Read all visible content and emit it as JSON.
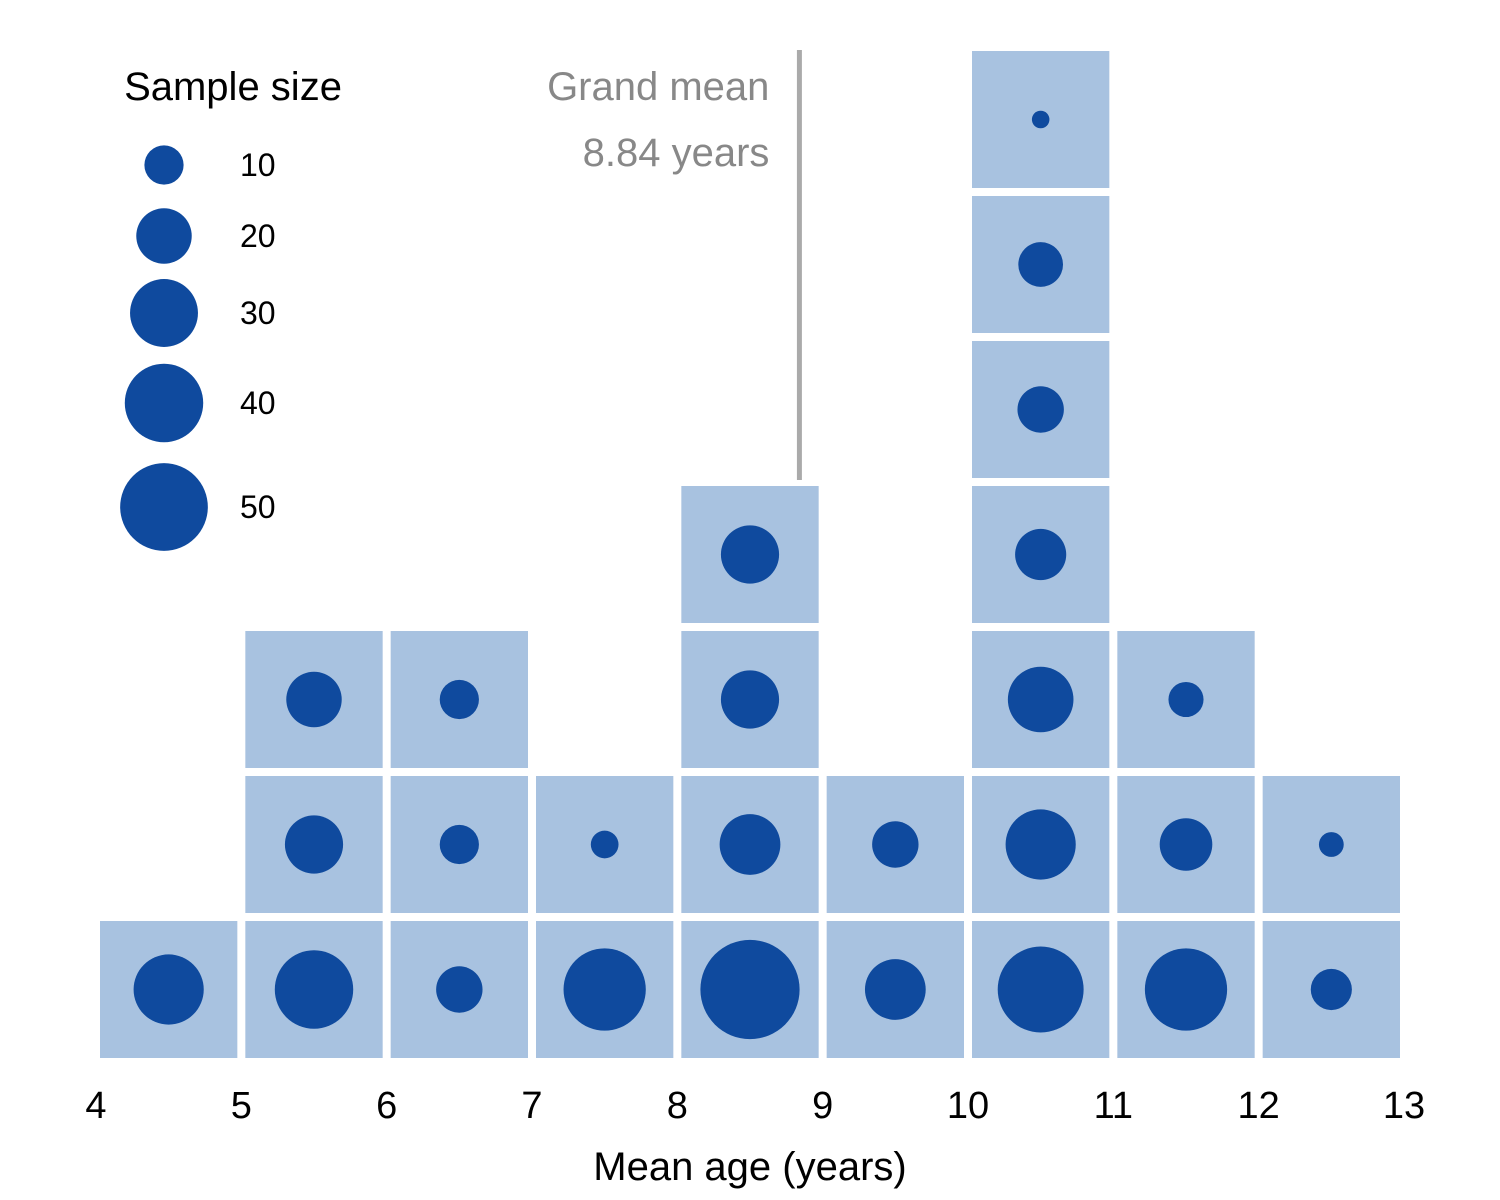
{
  "chart_data": {
    "type": "dot-histogram",
    "xlabel": "Mean age (years)",
    "xlim": [
      4,
      13
    ],
    "x_ticks": [
      "4",
      "5",
      "6",
      "7",
      "8",
      "9",
      "10",
      "11",
      "12",
      "13"
    ],
    "bin_width": 1,
    "stacks": [
      {
        "bin_start": 4,
        "sample_sizes": [
          32
        ]
      },
      {
        "bin_start": 5,
        "sample_sizes": [
          40,
          22,
          20
        ]
      },
      {
        "bin_start": 6,
        "sample_sizes": [
          14,
          10,
          10
        ]
      },
      {
        "bin_start": 7,
        "sample_sizes": [
          44,
          5
        ]
      },
      {
        "bin_start": 8,
        "sample_sizes": [
          64,
          24,
          22,
          22
        ]
      },
      {
        "bin_start": 9,
        "sample_sizes": [
          24,
          14
        ]
      },
      {
        "bin_start": 10,
        "sample_sizes": [
          48,
          32,
          28,
          17,
          14,
          13,
          2
        ]
      },
      {
        "bin_start": 11,
        "sample_sizes": [
          44,
          18,
          8
        ]
      },
      {
        "bin_start": 12,
        "sample_sizes": [
          11,
          4
        ]
      }
    ],
    "grand_mean": {
      "value": 8.84,
      "label_line1": "Grand mean",
      "label_line2": "8.84 years"
    },
    "legend": {
      "title": "Sample size",
      "placement": "top-left",
      "items": [
        {
          "value": 10,
          "label": "10"
        },
        {
          "value": 20,
          "label": "20"
        },
        {
          "value": 30,
          "label": "30"
        },
        {
          "value": 40,
          "label": "40"
        },
        {
          "value": 50,
          "label": "50"
        }
      ]
    },
    "colors": {
      "tile": "#a8c2e0",
      "dot": "#0f4a9e",
      "mean_line": "#aaaaaa",
      "mean_text": "#888888"
    },
    "grid": false
  }
}
